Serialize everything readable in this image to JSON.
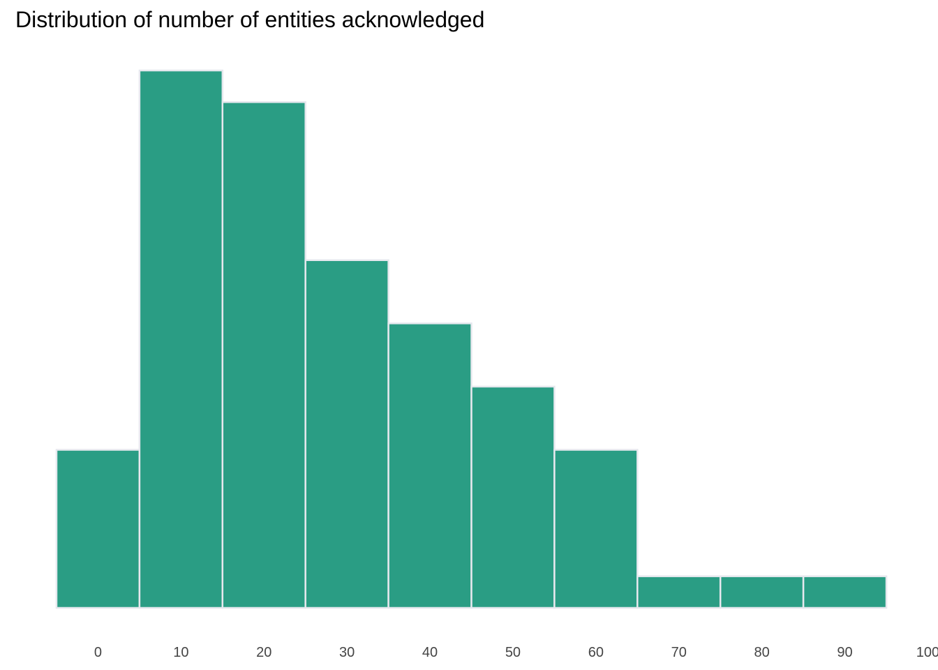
{
  "chart_data": {
    "type": "bar",
    "title": "Distribution of number of entities acknowledged",
    "xlabel": "",
    "ylabel": "",
    "bin_width": 10,
    "bins": [
      {
        "x": 0,
        "count": 5
      },
      {
        "x": 10,
        "count": 17
      },
      {
        "x": 20,
        "count": 16
      },
      {
        "x": 30,
        "count": 11
      },
      {
        "x": 40,
        "count": 9
      },
      {
        "x": 50,
        "count": 7
      },
      {
        "x": 60,
        "count": 5
      },
      {
        "x": 70,
        "count": 1
      },
      {
        "x": 80,
        "count": 1
      },
      {
        "x": 90,
        "count": 1
      }
    ],
    "x_ticks": [
      "0",
      "10",
      "20",
      "30",
      "40",
      "50",
      "60",
      "70",
      "80",
      "90",
      "100"
    ],
    "xlim": [
      -5,
      95
    ],
    "ylim": [
      0,
      17
    ],
    "grid": false,
    "y_axis_visible": false,
    "colors": {
      "bar_fill": "#2a9d84",
      "bar_stroke": "#e6e8ee"
    }
  }
}
